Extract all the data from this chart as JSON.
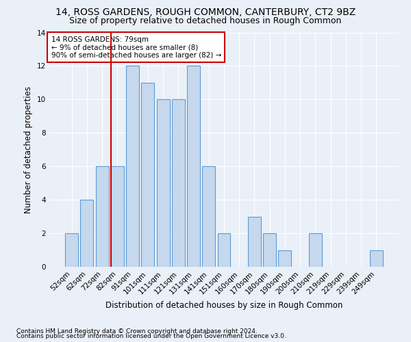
{
  "title": "14, ROSS GARDENS, ROUGH COMMON, CANTERBURY, CT2 9BZ",
  "subtitle": "Size of property relative to detached houses in Rough Common",
  "xlabel": "Distribution of detached houses by size in Rough Common",
  "ylabel": "Number of detached properties",
  "footer1": "Contains HM Land Registry data © Crown copyright and database right 2024.",
  "footer2": "Contains public sector information licensed under the Open Government Licence v3.0.",
  "categories": [
    "52sqm",
    "62sqm",
    "72sqm",
    "82sqm",
    "91sqm",
    "101sqm",
    "111sqm",
    "121sqm",
    "131sqm",
    "141sqm",
    "151sqm",
    "160sqm",
    "170sqm",
    "180sqm",
    "190sqm",
    "200sqm",
    "210sqm",
    "219sqm",
    "229sqm",
    "239sqm",
    "249sqm"
  ],
  "values": [
    2,
    4,
    6,
    6,
    12,
    11,
    10,
    10,
    12,
    6,
    2,
    0,
    3,
    2,
    1,
    0,
    2,
    0,
    0,
    0,
    1
  ],
  "bar_color": "#c5d8ed",
  "bar_edge_color": "#5b9bd5",
  "vline_x_index": 3,
  "vline_color": "#cc0000",
  "annotation_text": "14 ROSS GARDENS: 79sqm\n← 9% of detached houses are smaller (8)\n90% of semi-detached houses are larger (82) →",
  "annotation_box_color": "#ffffff",
  "annotation_box_edge_color": "#cc0000",
  "ylim": [
    0,
    14
  ],
  "yticks": [
    0,
    2,
    4,
    6,
    8,
    10,
    12,
    14
  ],
  "bg_color": "#eaf0f8",
  "plot_bg_color": "#eaf0f8",
  "grid_color": "#ffffff",
  "title_fontsize": 10,
  "subtitle_fontsize": 9,
  "axis_label_fontsize": 8.5,
  "tick_fontsize": 7.5,
  "annotation_fontsize": 7.5,
  "footer_fontsize": 6.5
}
